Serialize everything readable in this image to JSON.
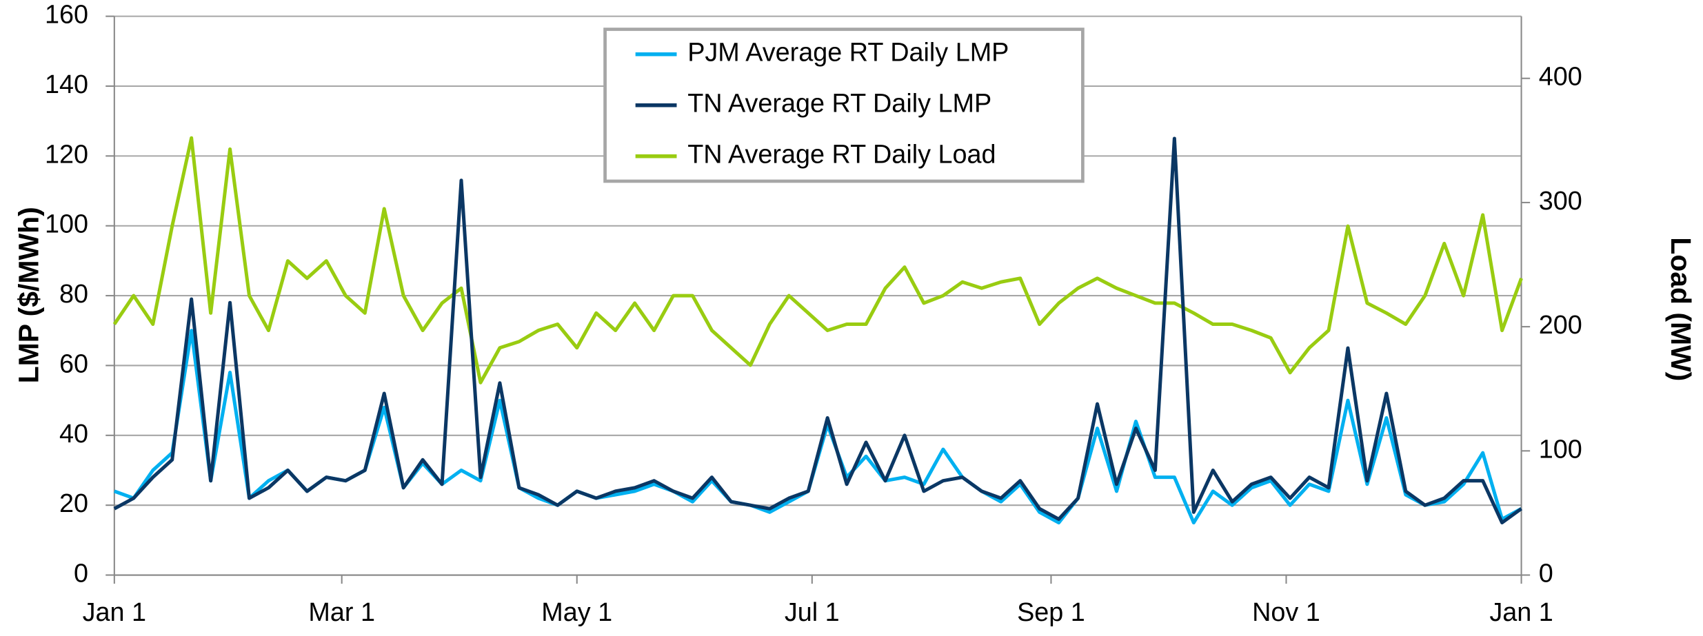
{
  "chart_data": {
    "type": "line",
    "y_label": "LMP ($/MWh)",
    "y2_label": "Load (MW)",
    "x": [
      0,
      5,
      10,
      15,
      20,
      25,
      30,
      35,
      40,
      45,
      50,
      55,
      60,
      65,
      70,
      75,
      80,
      85,
      90,
      95,
      100,
      105,
      110,
      115,
      120,
      125,
      130,
      135,
      140,
      145,
      150,
      155,
      160,
      165,
      170,
      175,
      180,
      185,
      190,
      195,
      200,
      205,
      210,
      215,
      220,
      225,
      230,
      235,
      240,
      245,
      250,
      255,
      260,
      265,
      270,
      275,
      280,
      285,
      290,
      295,
      300,
      305,
      310,
      315,
      320,
      325,
      330,
      335,
      340,
      345,
      350,
      355,
      360,
      365
    ],
    "xlim": [
      0,
      365
    ],
    "xticks": [
      {
        "value": 0,
        "label": "Jan 1"
      },
      {
        "value": 59,
        "label": "Mar 1"
      },
      {
        "value": 120,
        "label": "May 1"
      },
      {
        "value": 181,
        "label": "Jul 1"
      },
      {
        "value": 243,
        "label": "Sep 1"
      },
      {
        "value": 304,
        "label": "Nov 1"
      },
      {
        "value": 365,
        "label": "Jan 1"
      }
    ],
    "ylim": [
      0,
      160
    ],
    "yticks": [
      0,
      20,
      40,
      60,
      80,
      100,
      120,
      140,
      160
    ],
    "y2lim": [
      0,
      450
    ],
    "y2ticks": [
      0,
      100,
      200,
      300,
      400
    ],
    "grid": true,
    "legend": "top",
    "series": [
      {
        "name": "PJM Average RT Daily LMP",
        "color": "#00b0f0",
        "values": [
          24,
          22,
          30,
          35,
          70,
          27,
          58,
          22,
          27,
          30,
          24,
          28,
          27,
          30,
          48,
          25,
          32,
          26,
          30,
          27,
          50,
          25,
          22,
          20,
          24,
          22,
          23,
          24,
          26,
          24,
          21,
          27,
          21,
          20,
          18,
          21,
          24,
          43,
          28,
          34,
          27,
          28,
          26,
          36,
          28,
          24,
          21,
          26,
          18,
          15,
          22,
          42,
          24,
          44,
          28,
          28,
          15,
          24,
          20,
          25,
          27,
          20,
          26,
          24,
          50,
          26,
          45,
          23,
          20,
          21,
          26,
          35,
          16,
          19
        ]
      },
      {
        "name": "TN Average RT Daily LMP",
        "color": "#0b3764",
        "values": [
          19,
          22,
          28,
          33,
          79,
          27,
          78,
          22,
          25,
          30,
          24,
          28,
          27,
          30,
          52,
          25,
          33,
          26,
          113,
          28,
          55,
          25,
          23,
          20,
          24,
          22,
          24,
          25,
          27,
          24,
          22,
          28,
          21,
          20,
          19,
          22,
          24,
          45,
          26,
          38,
          27,
          40,
          24,
          27,
          28,
          24,
          22,
          27,
          19,
          16,
          22,
          49,
          26,
          42,
          30,
          125,
          18,
          30,
          21,
          26,
          28,
          22,
          28,
          25,
          65,
          27,
          52,
          24,
          20,
          22,
          27,
          27,
          15,
          19
        ]
      },
      {
        "name": "TN Average RT Daily Load",
        "color": "#99cc11",
        "axis": "y2",
        "values": [
          202,
          225,
          202,
          281,
          352,
          211,
          343,
          225,
          197,
          253,
          239,
          253,
          225,
          211,
          295,
          225,
          197,
          219,
          231,
          155,
          183,
          188,
          197,
          202,
          183,
          211,
          197,
          219,
          197,
          225,
          225,
          197,
          183,
          169,
          202,
          225,
          211,
          197,
          202,
          202,
          231,
          248,
          219,
          225,
          236,
          231,
          236,
          239,
          202,
          219,
          231,
          239,
          231,
          225,
          219,
          219,
          211,
          202,
          202,
          197,
          191,
          163,
          183,
          197,
          281,
          219,
          211,
          202,
          225,
          267,
          225,
          290,
          197,
          239
        ]
      }
    ]
  }
}
